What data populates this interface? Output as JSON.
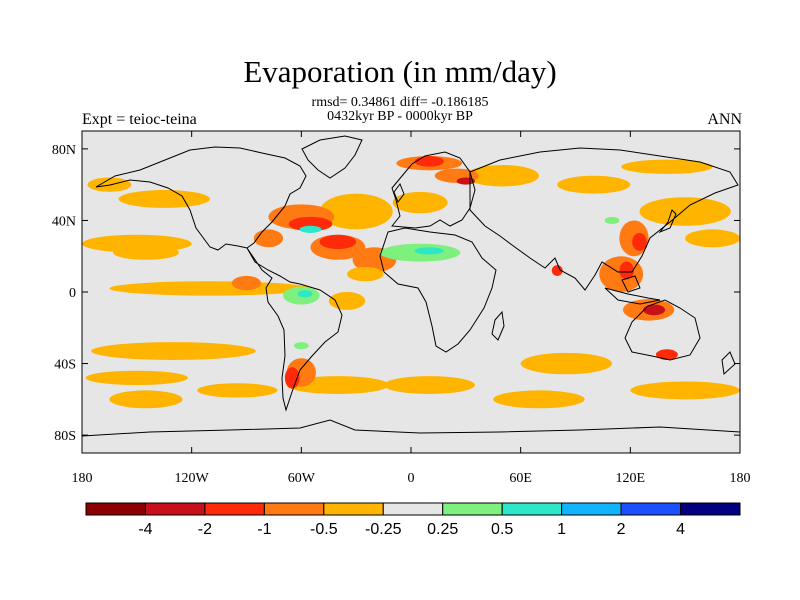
{
  "title": "Evaporation (in mm/day)",
  "stats_line": "rmsd= 0.34861 diff= -0.186185",
  "period_line": "0432kyr BP - 0000kyr BP",
  "expt_label": "Expt = teioc-teina",
  "season_label": "ANN",
  "colors": {
    "background_field": "#e6e6e6",
    "coastline": "#000000"
  },
  "chart_data": {
    "type": "heatmap",
    "title": "Evaporation (in mm/day)",
    "xlim": [
      -180,
      180
    ],
    "ylim": [
      -90,
      90
    ],
    "lat_ticks": [
      {
        "value": 80,
        "label": "80N"
      },
      {
        "value": 40,
        "label": "40N"
      },
      {
        "value": 0,
        "label": "0"
      },
      {
        "value": -40,
        "label": "40S"
      },
      {
        "value": -80,
        "label": "80S"
      }
    ],
    "lon_ticks": [
      {
        "value": -180,
        "label": "180"
      },
      {
        "value": -120,
        "label": "120W"
      },
      {
        "value": -60,
        "label": "60W"
      },
      {
        "value": 0,
        "label": "0"
      },
      {
        "value": 60,
        "label": "60E"
      },
      {
        "value": 120,
        "label": "120E"
      },
      {
        "value": 180,
        "label": "180"
      }
    ],
    "colorbar": {
      "colors": [
        "#8b0000",
        "#c8101a",
        "#ff2a0a",
        "#ff7a12",
        "#ffb400",
        "#e6e6e6",
        "#7df07d",
        "#2ee6c8",
        "#10b4ff",
        "#1a50ff",
        "#000080"
      ],
      "labels": [
        "-4",
        "-2",
        "-1",
        "-0.5",
        "-0.25",
        "0.25",
        "0.5",
        "1",
        "2",
        "4"
      ]
    },
    "regions": [
      {
        "lon": -150,
        "lat": 27,
        "rx": 30,
        "ry": 5,
        "level": -0.25
      },
      {
        "lon": -145,
        "lat": 22,
        "rx": 18,
        "ry": 4,
        "level": -0.25
      },
      {
        "lon": -135,
        "lat": 52,
        "rx": 25,
        "ry": 5,
        "level": -0.25
      },
      {
        "lon": -165,
        "lat": 60,
        "rx": 12,
        "ry": 4,
        "level": -0.25
      },
      {
        "lon": -110,
        "lat": 2,
        "rx": 55,
        "ry": 4,
        "level": -0.25
      },
      {
        "lon": -130,
        "lat": -33,
        "rx": 45,
        "ry": 5,
        "level": -0.25
      },
      {
        "lon": -150,
        "lat": -48,
        "rx": 28,
        "ry": 4,
        "level": -0.25
      },
      {
        "lon": -145,
        "lat": -60,
        "rx": 20,
        "ry": 5,
        "level": -0.25
      },
      {
        "lon": -95,
        "lat": -55,
        "rx": 22,
        "ry": 4,
        "level": -0.25
      },
      {
        "lon": -40,
        "lat": -52,
        "rx": 28,
        "ry": 5,
        "level": -0.25
      },
      {
        "lon": 10,
        "lat": -52,
        "rx": 25,
        "ry": 5,
        "level": -0.25
      },
      {
        "lon": 85,
        "lat": -40,
        "rx": 25,
        "ry": 6,
        "level": -0.25
      },
      {
        "lon": 70,
        "lat": -60,
        "rx": 25,
        "ry": 5,
        "level": -0.25
      },
      {
        "lon": 150,
        "lat": -55,
        "rx": 30,
        "ry": 5,
        "level": -0.25
      },
      {
        "lon": 150,
        "lat": 45,
        "rx": 25,
        "ry": 8,
        "level": -0.25
      },
      {
        "lon": 165,
        "lat": 30,
        "rx": 15,
        "ry": 5,
        "level": -0.25
      },
      {
        "lon": 100,
        "lat": 60,
        "rx": 20,
        "ry": 5,
        "level": -0.25
      },
      {
        "lon": 140,
        "lat": 70,
        "rx": 25,
        "ry": 4,
        "level": -0.25
      },
      {
        "lon": 50,
        "lat": 65,
        "rx": 20,
        "ry": 6,
        "level": -0.25
      },
      {
        "lon": 5,
        "lat": 50,
        "rx": 15,
        "ry": 6,
        "level": -0.25
      },
      {
        "lon": -30,
        "lat": 45,
        "rx": 20,
        "ry": 10,
        "level": -0.25
      },
      {
        "lon": -60,
        "lat": 42,
        "rx": 18,
        "ry": 7,
        "level": -0.5
      },
      {
        "lon": -55,
        "lat": 38,
        "rx": 12,
        "ry": 4,
        "level": -1
      },
      {
        "lon": -78,
        "lat": 30,
        "rx": 8,
        "ry": 5,
        "level": -0.5
      },
      {
        "lon": -40,
        "lat": 25,
        "rx": 15,
        "ry": 7,
        "level": -0.5
      },
      {
        "lon": -20,
        "lat": 18,
        "rx": 12,
        "ry": 7,
        "level": -0.5
      },
      {
        "lon": -25,
        "lat": 10,
        "rx": 10,
        "ry": 4,
        "level": -0.25
      },
      {
        "lon": -90,
        "lat": 5,
        "rx": 8,
        "ry": 4,
        "level": -0.5
      },
      {
        "lon": -35,
        "lat": -5,
        "rx": 10,
        "ry": 5,
        "level": -0.25
      },
      {
        "lon": -60,
        "lat": -45,
        "rx": 8,
        "ry": 8,
        "level": -0.5
      },
      {
        "lon": -65,
        "lat": -48,
        "rx": 4,
        "ry": 6,
        "level": -1
      },
      {
        "lon": 10,
        "lat": 72,
        "rx": 18,
        "ry": 4,
        "level": -0.5
      },
      {
        "lon": 10,
        "lat": 73,
        "rx": 8,
        "ry": 3,
        "level": -1
      },
      {
        "lon": 25,
        "lat": 65,
        "rx": 12,
        "ry": 4,
        "level": -0.5
      },
      {
        "lon": 30,
        "lat": 62,
        "rx": 5,
        "ry": 2,
        "level": -2
      },
      {
        "lon": 122,
        "lat": 30,
        "rx": 8,
        "ry": 10,
        "level": -0.5
      },
      {
        "lon": 125,
        "lat": 28,
        "rx": 4,
        "ry": 5,
        "level": -1
      },
      {
        "lon": 115,
        "lat": 10,
        "rx": 12,
        "ry": 10,
        "level": -0.5
      },
      {
        "lon": 118,
        "lat": 12,
        "rx": 4,
        "ry": 5,
        "level": -1
      },
      {
        "lon": 130,
        "lat": -10,
        "rx": 14,
        "ry": 6,
        "level": -0.5
      },
      {
        "lon": 133,
        "lat": -10,
        "rx": 6,
        "ry": 3,
        "level": -2
      },
      {
        "lon": 140,
        "lat": -35,
        "rx": 6,
        "ry": 3,
        "level": -1
      },
      {
        "lon": 80,
        "lat": 12,
        "rx": 3,
        "ry": 3,
        "level": -1
      },
      {
        "lon": -40,
        "lat": 28,
        "rx": 10,
        "ry": 4,
        "level": -1
      },
      {
        "lon": 5,
        "lat": 22,
        "rx": 22,
        "ry": 5,
        "level": 0.25
      },
      {
        "lon": 10,
        "lat": 23,
        "rx": 8,
        "ry": 2,
        "level": 0.5
      },
      {
        "lon": -60,
        "lat": -2,
        "rx": 10,
        "ry": 5,
        "level": 0.25
      },
      {
        "lon": -58,
        "lat": -1,
        "rx": 4,
        "ry": 2,
        "level": 0.5
      },
      {
        "lon": -55,
        "lat": 35,
        "rx": 6,
        "ry": 2,
        "level": 0.5
      },
      {
        "lon": -60,
        "lat": -30,
        "rx": 4,
        "ry": 2,
        "level": 0.25
      },
      {
        "lon": 110,
        "lat": 40,
        "rx": 4,
        "ry": 2,
        "level": 0.25
      }
    ]
  }
}
